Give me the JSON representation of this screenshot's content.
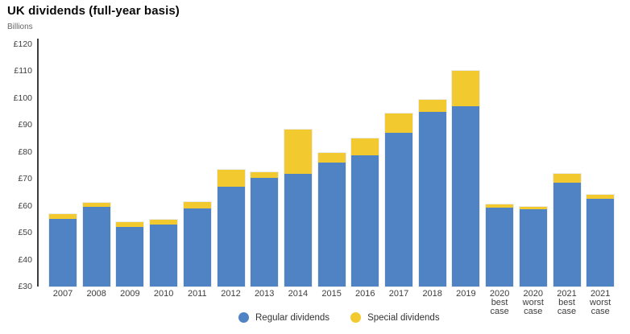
{
  "header": {
    "title": "UK dividends (full-year basis)",
    "subtitle": "Billions"
  },
  "chart_data": {
    "type": "bar",
    "stacked": true,
    "title": "UK dividends (full-year basis)",
    "ylabel": "Billions",
    "ylim": [
      30,
      120
    ],
    "ytick_step": 10,
    "ytick_labels": [
      "£120",
      "£110",
      "£100",
      "£90",
      "£80",
      "£70",
      "£60",
      "£50",
      "£40",
      "£30"
    ],
    "grid": false,
    "legend_position": "bottom-center",
    "categories": [
      "2007",
      "2008",
      "2009",
      "2010",
      "2011",
      "2012",
      "2013",
      "2014",
      "2015",
      "2016",
      "2017",
      "2018",
      "2019",
      "2020 best case",
      "2020 worst case",
      "2021 best case",
      "2021 worst case"
    ],
    "series": [
      {
        "name": "Regular dividends",
        "color": "#4f83c4",
        "values": [
          55.0,
          59.5,
          52.2,
          53.0,
          59.0,
          67.0,
          70.5,
          71.8,
          76.0,
          78.7,
          87.0,
          95.0,
          97.0,
          59.4,
          58.6,
          68.7,
          62.7
        ]
      },
      {
        "name": "Special dividends",
        "color": "#f2ca30",
        "values": [
          1.8,
          1.5,
          1.6,
          1.7,
          2.5,
          6.5,
          2.0,
          16.5,
          3.5,
          6.4,
          7.3,
          4.4,
          13.2,
          1.1,
          1.0,
          3.3,
          1.5
        ]
      }
    ]
  },
  "legend": {
    "items": [
      {
        "label": "Regular dividends",
        "color": "#4f83c4"
      },
      {
        "label": "Special dividends",
        "color": "#f2ca30"
      }
    ]
  }
}
